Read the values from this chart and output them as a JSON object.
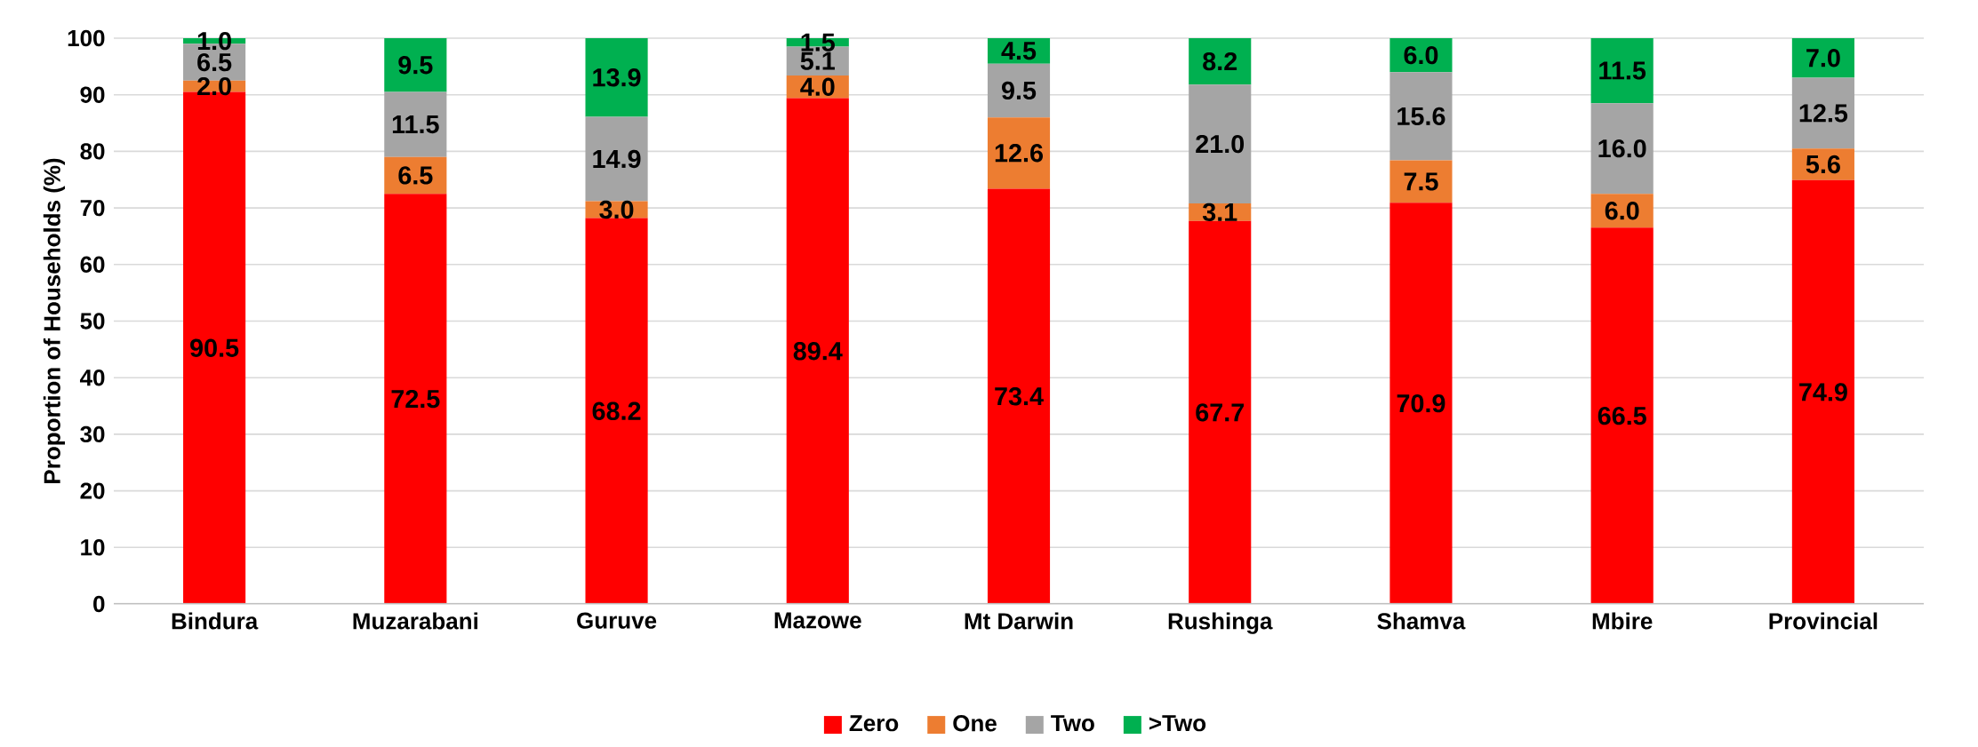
{
  "chart_data": {
    "type": "bar",
    "stacked": true,
    "ylabel": "Proportion of Households (%)",
    "categories": [
      "Bindura",
      "Muzarabani",
      "Guruve",
      "Mazowe",
      "Mt Darwin",
      "Rushinga",
      "Shamva",
      "Mbire",
      "Provincial"
    ],
    "series": [
      {
        "name": "Zero",
        "color": "#ff0000",
        "values": [
          90.5,
          72.5,
          68.2,
          89.4,
          73.4,
          67.7,
          70.9,
          66.5,
          74.9
        ],
        "value_labels": [
          "90.5",
          "72.5",
          "68.2",
          "89.4",
          "73.4",
          "67.7",
          "70.9",
          "66.5",
          "74.9"
        ]
      },
      {
        "name": "One",
        "color": "#ed7d31",
        "values": [
          2.0,
          6.5,
          3.0,
          4.0,
          12.6,
          3.1,
          7.5,
          6.0,
          5.6
        ],
        "value_labels": [
          "2.0",
          "6.5",
          "3.0",
          "4.0",
          "12.6",
          "3.1",
          "7.5",
          "6.0",
          "5.6"
        ]
      },
      {
        "name": "Two",
        "color": "#a5a5a5",
        "values": [
          6.5,
          11.5,
          14.9,
          5.1,
          9.5,
          21.0,
          15.6,
          16.0,
          12.5
        ],
        "value_labels": [
          "6.5",
          "11.5",
          "14.9",
          "5.1",
          "9.5",
          "21.0",
          "15.6",
          "16.0",
          "12.5"
        ]
      },
      {
        "name": ">Two",
        "color": "#00b050",
        "values": [
          1.0,
          9.5,
          13.9,
          1.5,
          4.5,
          8.2,
          6.0,
          11.5,
          7.0
        ],
        "value_labels": [
          "1.0",
          "9.5",
          "13.9",
          "1.5",
          "4.5",
          "8.2",
          "6.0",
          "11.5",
          "7.0"
        ]
      }
    ],
    "ylim": [
      0,
      100
    ],
    "yticks": [
      0,
      10,
      20,
      30,
      40,
      50,
      60,
      70,
      80,
      90,
      100
    ],
    "grid": "y",
    "legend": "bottom"
  }
}
